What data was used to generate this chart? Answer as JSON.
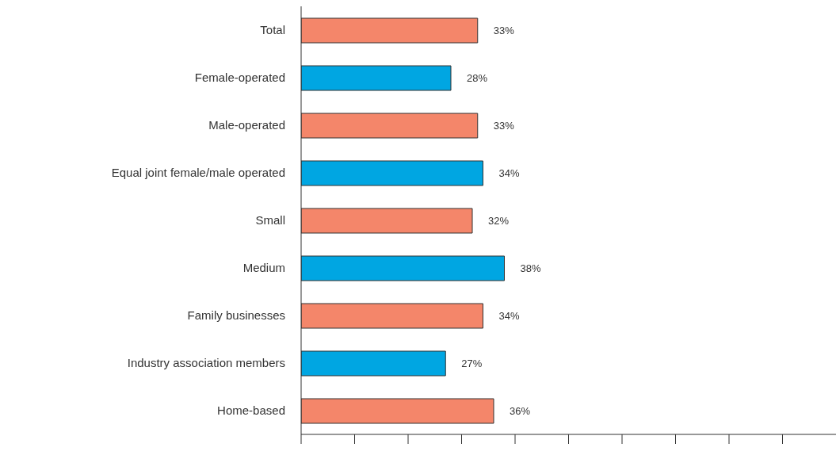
{
  "chart_data": {
    "type": "bar",
    "orientation": "horizontal",
    "categories": [
      "Total",
      "Female-operated",
      "Male-operated",
      "Equal joint female/male operated",
      "Small",
      "Medium",
      "Family businesses",
      "Industry association members",
      "Home-based"
    ],
    "values": [
      33,
      28,
      33,
      34,
      32,
      38,
      34,
      27,
      36
    ],
    "colors": [
      "#f4866a",
      "#00a6e2",
      "#f4866a",
      "#00a6e2",
      "#f4866a",
      "#00a6e2",
      "#f4866a",
      "#00a6e2",
      "#f4866a"
    ],
    "value_labels": [
      "33%",
      "28%",
      "33%",
      "34%",
      "32%",
      "38%",
      "34%",
      "27%",
      "36%"
    ],
    "xlim": [
      0,
      100
    ],
    "xticks": [
      {
        "value": 0,
        "label": null
      },
      {
        "value": 10,
        "label": null
      },
      {
        "value": 20,
        "label": null
      },
      {
        "value": 30,
        "label": null
      },
      {
        "value": 40,
        "label": null
      },
      {
        "value": 50,
        "label": null
      },
      {
        "value": 60,
        "label": null
      },
      {
        "value": 70,
        "label": null
      },
      {
        "value": 80,
        "label": null
      },
      {
        "value": 90,
        "label": null
      }
    ],
    "tick_labels": "y",
    "grid": false,
    "legend": false
  }
}
